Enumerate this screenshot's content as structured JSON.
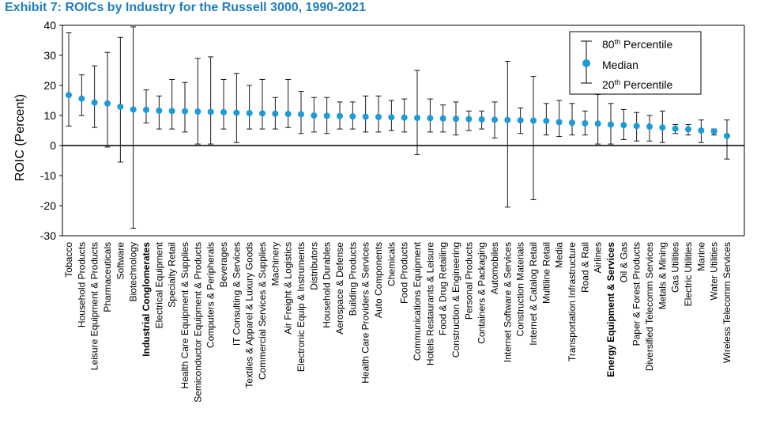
{
  "chart_data": {
    "type": "errorbar",
    "title": "Exhibit 7: ROICs by Industry for the Russell 3000, 1990-2021",
    "xlabel": "",
    "ylabel": "ROIC (Percent)",
    "ylim": [
      -30,
      40
    ],
    "yticks": [
      40,
      30,
      20,
      10,
      0,
      -10,
      -20,
      -30
    ],
    "grid": false,
    "legend_position": "top-right",
    "legend": {
      "top_label": "80",
      "top_suffix": "th",
      "top_rest": " Percentile",
      "median_label": "Median",
      "bottom_label": "20",
      "bottom_suffix": "th",
      "bottom_rest": " Percentile"
    },
    "colors": {
      "median": "#1b9bd7",
      "title": "#1f7fc1",
      "line": "#000000"
    },
    "bold_categories": [
      "Industrial Conglomerates",
      "Energy Equipment & Services"
    ],
    "categories": [
      "Tobacco",
      "Household Products",
      "Leisure Equipment & Products",
      "Pharmaceuticals",
      "Software",
      "Biotechnology",
      "Industrial Conglomerates",
      "Electrical Equipment",
      "Specialty Retail",
      "Health Care Equipment & Supplies",
      "Semiconductor Equipment & Products",
      "Computers & Peripherals",
      "Beverages",
      "IT Consulting & Services",
      "Textiles & Apparel & Luxury Goods",
      "Commercial Services & Supplies",
      "Machinery",
      "Air Freight & Logistics",
      "Electronic Equip & Instruments",
      "Distributors",
      "Household Durables",
      "Aerospace & Defense",
      "Building Products",
      "Health Care Providers & Services",
      "Auto Components",
      "Chemicals",
      "Food Products",
      "Communications Equipment",
      "Hotels Restaurants & Leisure",
      "Food & Drug Retailing",
      "Construction & Engineering",
      "Personal Products",
      "Containers & Packaging",
      "Automobiles",
      "Internet Software & Services",
      "Construction Materials",
      "Internet & Catalog Retail",
      "Multiline Retail",
      "Media",
      "Transportation Infrastructure",
      "Road & Rail",
      "Airlines",
      "Energy Equipment & Services",
      "Oil & Gas",
      "Paper & Forest Products",
      "Diversified Telecomm Services",
      "Metals & Mining",
      "Gas Utilities",
      "Electric Utilities",
      "Marine",
      "Water Utilities",
      "Wireless Telecomm Services"
    ],
    "series": [
      {
        "name": "Median",
        "values": [
          16.8,
          15.6,
          14.3,
          14.0,
          12.9,
          12.0,
          11.9,
          11.6,
          11.5,
          11.4,
          11.3,
          11.2,
          11.1,
          10.9,
          10.8,
          10.7,
          10.6,
          10.5,
          10.4,
          10.0,
          9.9,
          9.8,
          9.7,
          9.6,
          9.5,
          9.4,
          9.3,
          9.2,
          9.1,
          9.0,
          8.9,
          8.8,
          8.7,
          8.6,
          8.5,
          8.4,
          8.3,
          8.2,
          7.8,
          7.6,
          7.4,
          7.3,
          7.0,
          6.8,
          6.5,
          6.3,
          6.0,
          5.6,
          5.4,
          5.0,
          4.7,
          3.2
        ]
      },
      {
        "name": "80th Percentile",
        "values": [
          37.5,
          23.5,
          26.5,
          31.0,
          36.0,
          39.5,
          18.5,
          16.5,
          22.0,
          21.0,
          29.0,
          29.5,
          22.0,
          24.0,
          20.0,
          22.0,
          16.0,
          22.0,
          18.0,
          16.0,
          16.0,
          14.5,
          14.5,
          16.5,
          16.5,
          15.0,
          15.5,
          25.0,
          15.5,
          13.5,
          14.5,
          11.5,
          11.5,
          14.5,
          28.0,
          12.5,
          23.0,
          14.0,
          15.0,
          14.0,
          11.5,
          17.0,
          14.0,
          12.0,
          11.0,
          10.0,
          11.5,
          7.0,
          7.0,
          8.5,
          5.5,
          8.5
        ]
      },
      {
        "name": "20th Percentile",
        "values": [
          6.5,
          10.0,
          6.0,
          -0.5,
          -5.5,
          -27.5,
          7.5,
          5.5,
          5.5,
          4.5,
          0.5,
          0.5,
          5.5,
          1.0,
          5.5,
          5.5,
          5.5,
          6.0,
          4.0,
          4.5,
          4.0,
          5.5,
          5.5,
          4.5,
          4.5,
          5.0,
          4.5,
          -3.0,
          4.5,
          4.5,
          3.5,
          5.0,
          5.5,
          2.5,
          -20.5,
          4.0,
          -18.0,
          3.5,
          3.0,
          3.5,
          3.5,
          0.5,
          0.5,
          2.0,
          1.5,
          1.5,
          1.0,
          4.0,
          3.5,
          1.0,
          3.5,
          -4.5
        ]
      }
    ]
  }
}
